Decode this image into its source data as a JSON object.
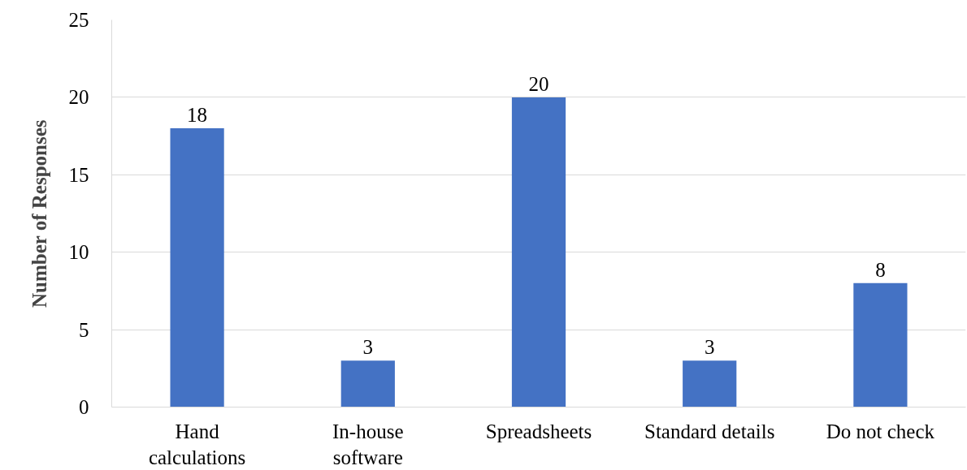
{
  "chart_data": {
    "type": "bar",
    "ylabel": "Number of Responses",
    "categories": [
      "Hand\ncalculations",
      "In-house\nsoftware",
      "Spreadsheets",
      "Standard details",
      "Do not check"
    ],
    "values": [
      18,
      3,
      20,
      3,
      8
    ],
    "color": "#4472c4",
    "ylim": [
      0,
      25
    ],
    "yticks": [
      0,
      5,
      10,
      15,
      20,
      25
    ],
    "grid": "y",
    "data_labels": true
  }
}
